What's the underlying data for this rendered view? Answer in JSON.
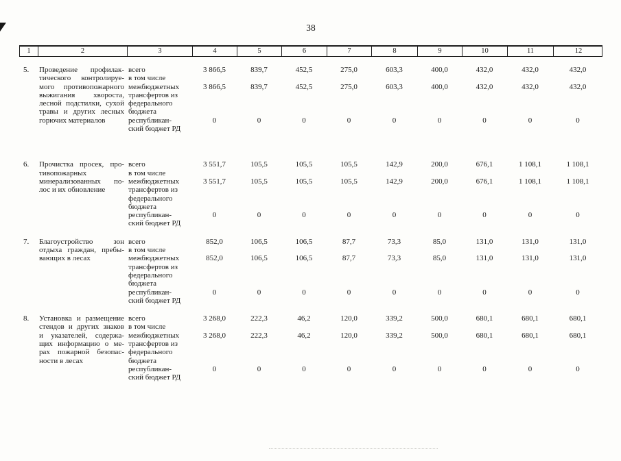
{
  "page": {
    "number": "38"
  },
  "table": {
    "column_numbers": [
      "1",
      "2",
      "3",
      "4",
      "5",
      "6",
      "7",
      "8",
      "9",
      "10",
      "11",
      "12"
    ],
    "budget_label_lines": [
      "всего",
      "в том числе",
      "межбюджетных",
      "трансфертов из",
      "федерального",
      "бюджета",
      "республикан-",
      "ский бюджет РД"
    ],
    "rows": [
      {
        "num": "5.",
        "description_lines": [
          "Проведение профилак-",
          "тического контролируе-",
          "мого противопожарного",
          "выжигания хвороста,",
          "лесной подстилки, сухой",
          "травы и других лесных",
          "горючих материалов"
        ],
        "values": {
          "total": [
            "3 866,5",
            "839,7",
            "452,5",
            "275,0",
            "603,3",
            "400,0",
            "432,0",
            "432,0",
            "432,0"
          ],
          "federal_transfers": [
            "3 866,5",
            "839,7",
            "452,5",
            "275,0",
            "603,3",
            "400,0",
            "432,0",
            "432,0",
            "432,0"
          ],
          "republic_budget": [
            "0",
            "0",
            "0",
            "0",
            "0",
            "0",
            "0",
            "0",
            "0"
          ]
        }
      },
      {
        "num": "6.",
        "description_lines": [
          "Прочистка просек, про-",
          "тивопожарных",
          "минерализованных по-",
          "лос и их обновление"
        ],
        "values": {
          "total": [
            "3 551,7",
            "105,5",
            "105,5",
            "105,5",
            "142,9",
            "200,0",
            "676,1",
            "1 108,1",
            "1 108,1"
          ],
          "federal_transfers": [
            "3 551,7",
            "105,5",
            "105,5",
            "105,5",
            "142,9",
            "200,0",
            "676,1",
            "1 108,1",
            "1 108,1"
          ],
          "republic_budget": [
            "0",
            "0",
            "0",
            "0",
            "0",
            "0",
            "0",
            "0",
            "0"
          ]
        }
      },
      {
        "num": "7.",
        "description_lines": [
          "Благоустройство зон",
          "отдыха граждан, пребы-",
          "вающих в лесах"
        ],
        "values": {
          "total": [
            "852,0",
            "106,5",
            "106,5",
            "87,7",
            "73,3",
            "85,0",
            "131,0",
            "131,0",
            "131,0"
          ],
          "federal_transfers": [
            "852,0",
            "106,5",
            "106,5",
            "87,7",
            "73,3",
            "85,0",
            "131,0",
            "131,0",
            "131,0"
          ],
          "republic_budget": [
            "0",
            "0",
            "0",
            "0",
            "0",
            "0",
            "0",
            "0",
            "0"
          ]
        }
      },
      {
        "num": "8.",
        "description_lines": [
          "Установка и размещение",
          "стендов и других знаков",
          "и указателей, содержа-",
          "щих информацию о ме-",
          "рах пожарной безопас-",
          "ности в лесах"
        ],
        "values": {
          "total": [
            "3 268,0",
            "222,3",
            "46,2",
            "120,0",
            "339,2",
            "500,0",
            "680,1",
            "680,1",
            "680,1"
          ],
          "federal_transfers": [
            "3 268,0",
            "222,3",
            "46,2",
            "120,0",
            "339,2",
            "500,0",
            "680,1",
            "680,1",
            "680,1"
          ],
          "republic_budget": [
            "0",
            "0",
            "0",
            "0",
            "0",
            "0",
            "0",
            "0",
            "0"
          ]
        }
      }
    ]
  }
}
